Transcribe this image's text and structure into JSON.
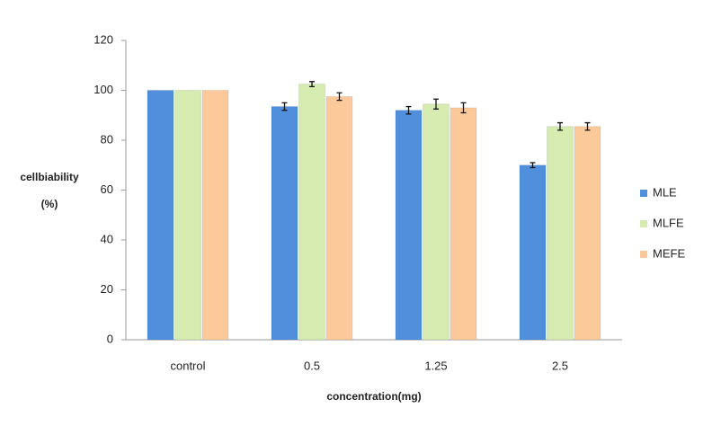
{
  "chart_data": {
    "type": "bar",
    "x_label": "concentration(mg)",
    "y_label_lines": [
      "cellbiability",
      "(%)"
    ],
    "categories": [
      "control",
      "0.5",
      "1.25",
      "2.5"
    ],
    "series": [
      {
        "name": "MLE",
        "color": "#4f8fdc",
        "values": [
          100,
          93.5,
          92,
          70
        ],
        "errors": [
          null,
          1.5,
          1.5,
          1
        ]
      },
      {
        "name": "MLFE",
        "color": "#d5ebb0",
        "values": [
          100,
          102.5,
          94.5,
          85.5
        ],
        "errors": [
          null,
          1,
          2,
          1.5
        ]
      },
      {
        "name": "MEFE",
        "color": "#fbc99a",
        "values": [
          100,
          97.5,
          93,
          85.5
        ],
        "errors": [
          null,
          1.5,
          2,
          1.5
        ]
      }
    ],
    "ylim": [
      0,
      120
    ],
    "yticks": [
      0,
      20,
      40,
      60,
      80,
      100,
      120
    ],
    "legend": "right"
  }
}
